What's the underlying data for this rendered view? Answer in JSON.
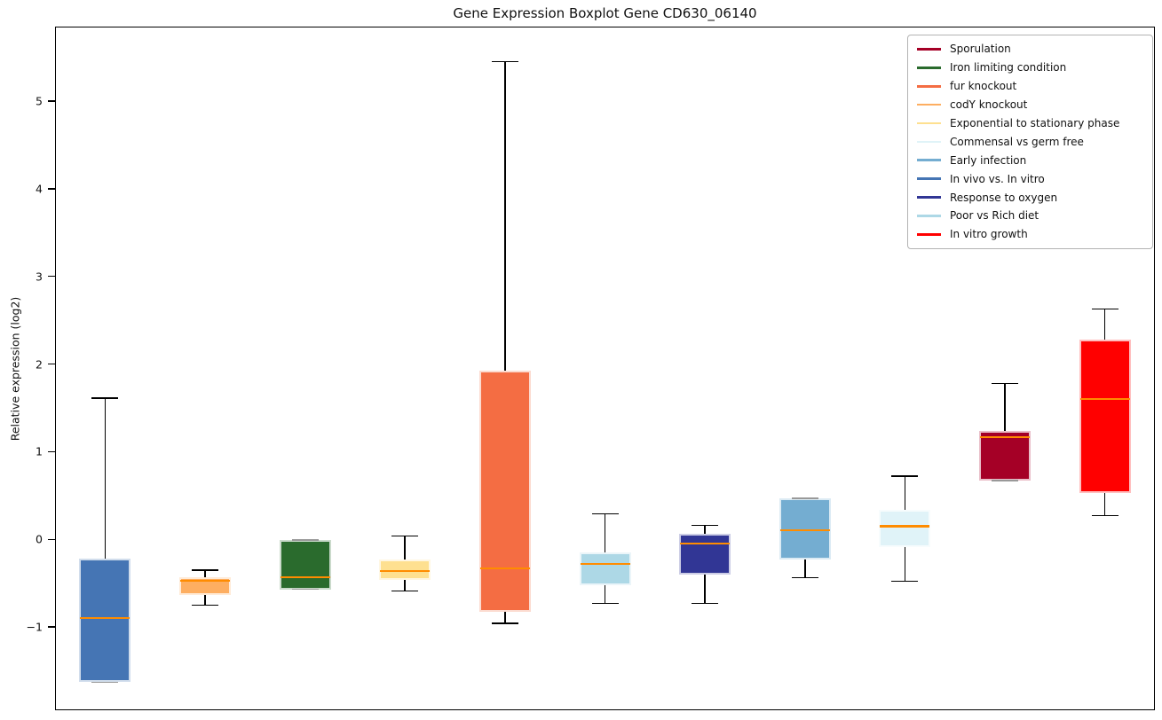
{
  "title": "Gene Expression Boxplot Gene CD630_06140",
  "ylabel": "Relative expression (log2)",
  "yticks": [
    {
      "value": 5,
      "label": "5"
    },
    {
      "value": 4,
      "label": "4"
    },
    {
      "value": 3,
      "label": "3"
    },
    {
      "value": 2,
      "label": "2"
    },
    {
      "value": 1,
      "label": "1"
    },
    {
      "value": 0,
      "label": "0"
    },
    {
      "value": -1,
      "label": "−1"
    }
  ],
  "legend": {
    "items": [
      {
        "label": "Sporulation",
        "color": "#a50026"
      },
      {
        "label": "Iron limiting condition",
        "color": "#2a6b2d"
      },
      {
        "label": "fur knockout",
        "color": "#f46d43"
      },
      {
        "label": "codY knockout",
        "color": "#fdae61"
      },
      {
        "label": "Exponential to stationary phase",
        "color": "#fee090"
      },
      {
        "label": "Commensal vs germ free",
        "color": "#e0f3f8"
      },
      {
        "label": "Early infection",
        "color": "#74add1"
      },
      {
        "label": "In vivo vs. In vitro",
        "color": "#4575b4"
      },
      {
        "label": "Response to oxygen",
        "color": "#313695"
      },
      {
        "label": "Poor vs Rich diet",
        "color": "#add8e6"
      },
      {
        "label": "In vitro growth",
        "color": "#ff0000"
      }
    ]
  },
  "style": {
    "median_color": "#ff8c00",
    "whisker_color": "#000000",
    "edge_cap_color": "#999999",
    "axis_color": "#000000",
    "text_color": "#111111"
  },
  "chart_data": {
    "type": "boxplot",
    "title": "Gene Expression Boxplot Gene CD630_06140",
    "xlabel": "",
    "ylabel": "Relative expression (log2)",
    "ylim": [
      -1.95,
      5.85
    ],
    "grid": false,
    "legend_position": "upper right",
    "categories": [
      "In vivo vs. In vitro",
      "codY knockout",
      "Iron limiting condition",
      "Exponential to stationary phase",
      "fur knockout",
      "Poor vs Rich diet",
      "Response to oxygen",
      "Early infection",
      "Commensal vs germ free",
      "Sporulation",
      "In vitro growth"
    ],
    "series": [
      {
        "name": "In vivo vs. In vitro",
        "color": "#4575b4",
        "whisker_low": -1.63,
        "q1": -1.63,
        "median": -0.9,
        "q3": -0.22,
        "whisker_high": 1.61
      },
      {
        "name": "codY knockout",
        "color": "#fdae61",
        "whisker_low": -0.75,
        "q1": -0.63,
        "median": -0.47,
        "q3": -0.43,
        "whisker_high": -0.35
      },
      {
        "name": "Iron limiting condition",
        "color": "#2a6b2d",
        "whisker_low": -0.57,
        "q1": -0.57,
        "median": -0.43,
        "q3": -0.01,
        "whisker_high": -0.01
      },
      {
        "name": "Exponential to stationary phase",
        "color": "#fee090",
        "whisker_low": -0.59,
        "q1": -0.46,
        "median": -0.36,
        "q3": -0.23,
        "whisker_high": 0.04
      },
      {
        "name": "fur knockout",
        "color": "#f46d43",
        "whisker_low": -0.96,
        "q1": -0.83,
        "median": -0.33,
        "q3": 1.92,
        "whisker_high": 5.45
      },
      {
        "name": "Poor vs Rich diet",
        "color": "#add8e6",
        "whisker_low": -0.73,
        "q1": -0.52,
        "median": -0.28,
        "q3": -0.15,
        "whisker_high": 0.29
      },
      {
        "name": "Response to oxygen",
        "color": "#313695",
        "whisker_low": -0.73,
        "q1": -0.4,
        "median": -0.05,
        "q3": 0.06,
        "whisker_high": 0.16
      },
      {
        "name": "Early infection",
        "color": "#74add1",
        "whisker_low": -0.44,
        "q1": -0.23,
        "median": 0.1,
        "q3": 0.47,
        "whisker_high": 0.47
      },
      {
        "name": "Commensal vs germ free",
        "color": "#e0f3f8",
        "whisker_low": -0.48,
        "q1": -0.09,
        "median": 0.15,
        "q3": 0.34,
        "whisker_high": 0.72
      },
      {
        "name": "Sporulation",
        "color": "#a50026",
        "whisker_low": 0.67,
        "q1": 0.67,
        "median": 1.17,
        "q3": 1.24,
        "whisker_high": 1.78
      },
      {
        "name": "In vitro growth",
        "color": "#ff0000",
        "whisker_low": 0.27,
        "q1": 0.53,
        "median": 1.6,
        "q3": 2.28,
        "whisker_high": 2.63
      }
    ]
  }
}
